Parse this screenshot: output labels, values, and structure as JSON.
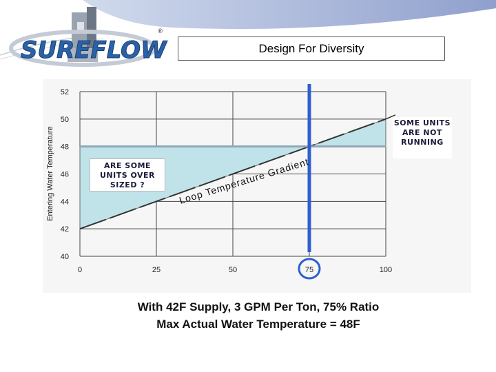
{
  "logo": {
    "brand": "SUREFLOW",
    "mark": "®",
    "icon": "building-block-icon"
  },
  "title": "Design For Diversity",
  "chart_data": {
    "type": "line",
    "title": "",
    "xlabel": "",
    "ylabel": "Entering Water Temperature",
    "xlim": [
      0,
      100
    ],
    "ylim": [
      40,
      52
    ],
    "x_ticks": [
      0,
      25,
      50,
      75,
      100
    ],
    "y_ticks": [
      40,
      42,
      44,
      46,
      48,
      50,
      52
    ],
    "grid": true,
    "series": [
      {
        "x": [
          0,
          100
        ],
        "y": [
          42,
          50
        ]
      }
    ],
    "reference_lines": {
      "vertical_x": 75,
      "horizontal_y": 48
    },
    "highlight_tick": 75,
    "annotations": [
      {
        "id": "oversized",
        "text": "ARE SOME UNITS OVER SIZED ?"
      },
      {
        "id": "running",
        "text": "SOME UNITS ARE NOT RUNNING"
      },
      {
        "id": "gradient",
        "text": "Loop Temperature Gradient"
      }
    ]
  },
  "captions": {
    "line1": "With 42F Supply, 3 GPM Per Ton, 75% Ratio",
    "line2": "Max Actual Water Temperature = 48F"
  },
  "colors": {
    "accent_blue": "#2d5fd0",
    "fill": "#bfe3e8",
    "logo_blue": "#2a62a8"
  }
}
